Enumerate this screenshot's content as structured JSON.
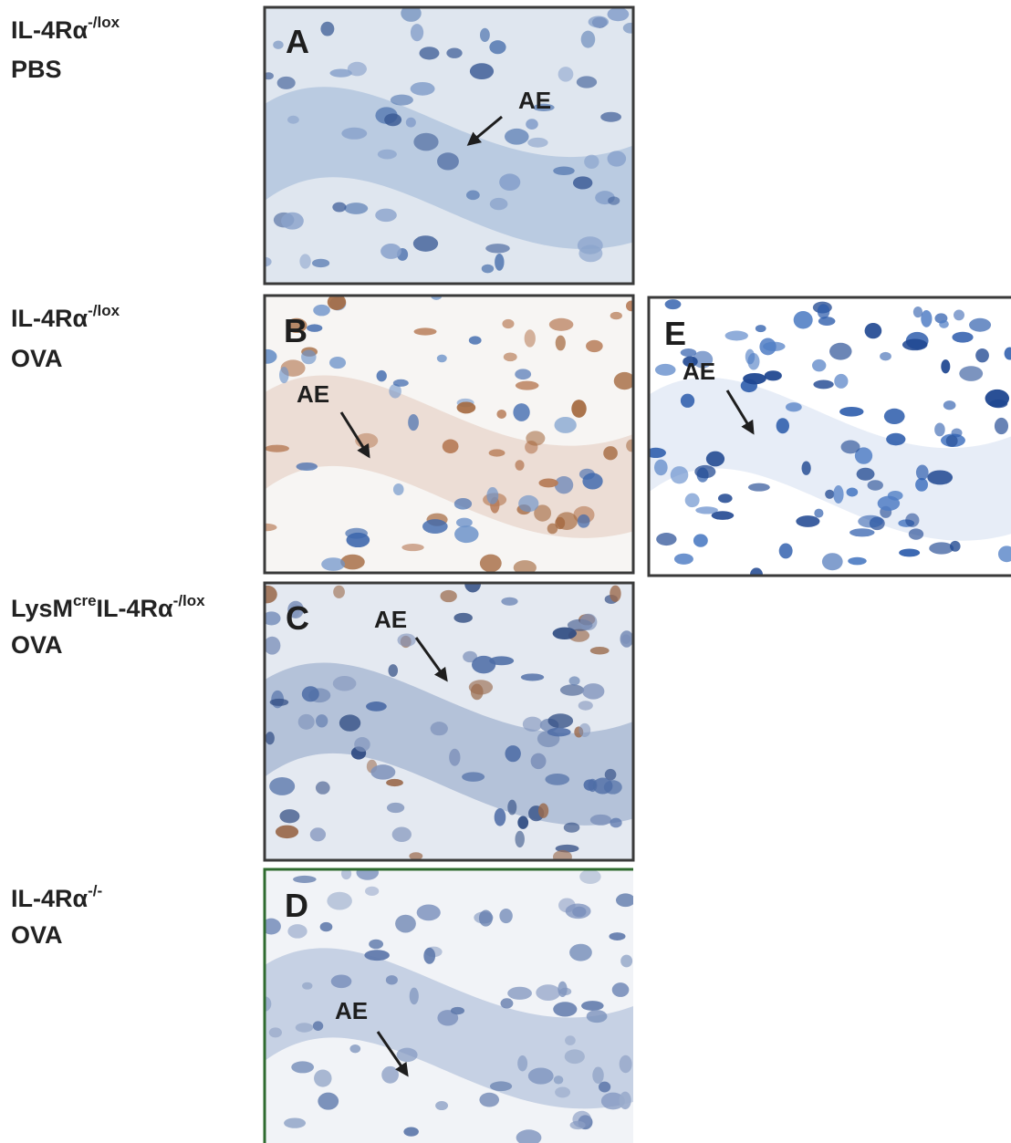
{
  "rows": [
    {
      "label": [
        "IL-4Rα",
        "-/lox"
      ],
      "condition": "PBS"
    },
    {
      "label": [
        "IL-4Rα",
        "-/lox"
      ],
      "condition": "OVA"
    },
    {
      "label": [
        "LysM",
        "cre",
        "IL-4Rα",
        "-/lox"
      ],
      "condition": "OVA"
    },
    {
      "label": [
        "IL-4Rα",
        "-/-"
      ],
      "condition": "OVA"
    }
  ],
  "panels": [
    {
      "letter": "A",
      "annotation": "AE"
    },
    {
      "letter": "B",
      "annotation": "AE"
    },
    {
      "letter": "C",
      "annotation": "AE"
    },
    {
      "letter": "D",
      "annotation": "AE"
    },
    {
      "letter": "E",
      "annotation": "AE"
    }
  ]
}
